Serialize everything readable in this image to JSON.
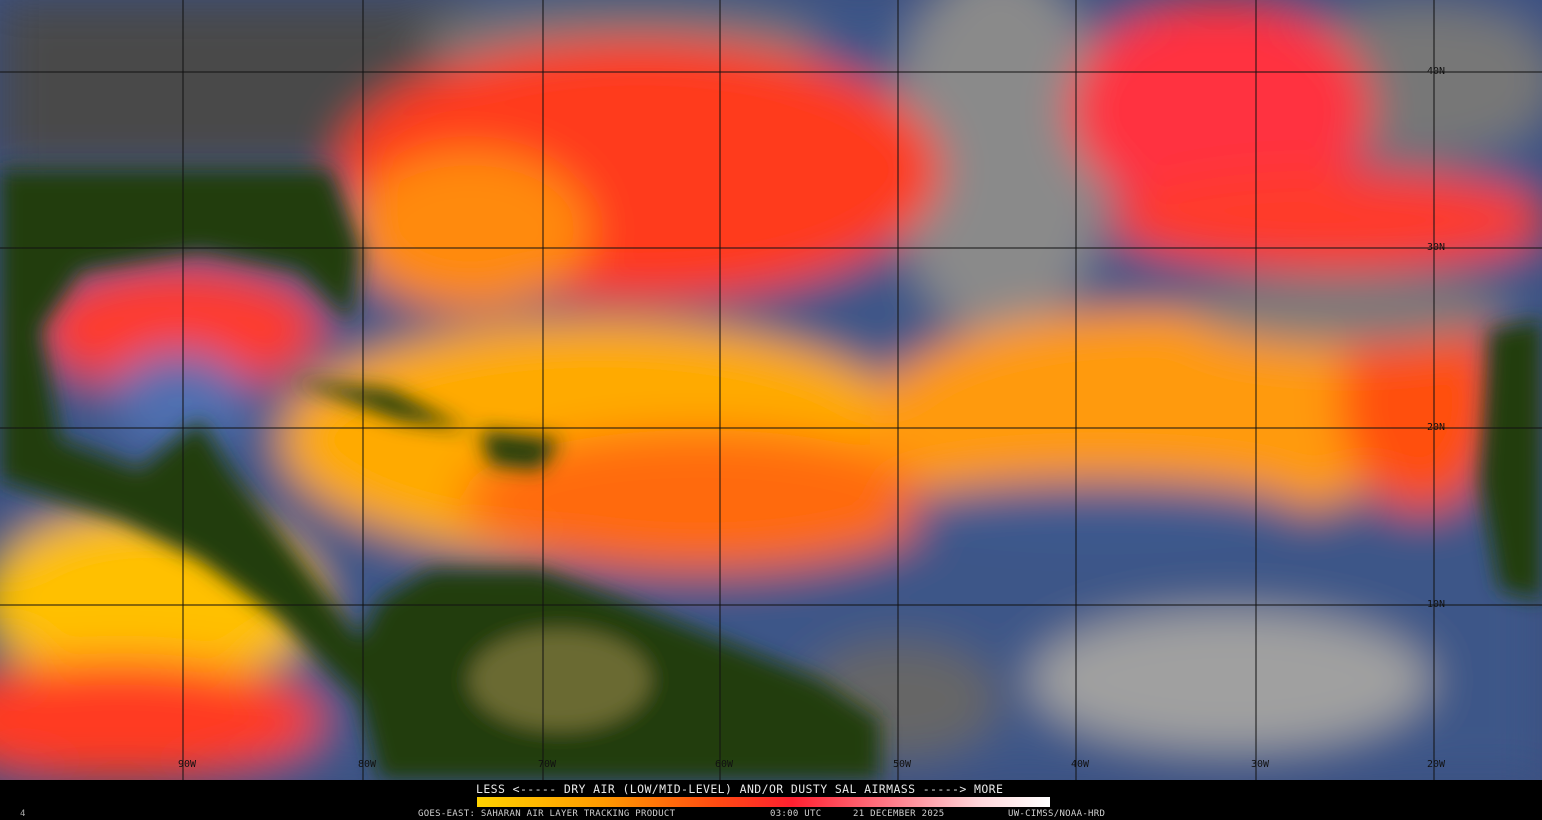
{
  "product": {
    "legend_title": "LESS <----- DRY AIR (LOW/MID-LEVEL) AND/OR DUSTY SAL AIRMASS -----> MORE",
    "satellite_product": "GOES-EAST: SAHARAN AIR LAYER TRACKING PRODUCT",
    "time": "03:00 UTC",
    "date": "21 DECEMBER 2025",
    "credit": "UW-CIMSS/NOAA-HRD",
    "corner_mark": "4"
  },
  "grid": {
    "longitude_labels": [
      "90W",
      "80W",
      "70W",
      "60W",
      "50W",
      "40W",
      "30W",
      "20W"
    ],
    "latitude_labels": [
      "40N",
      "30N",
      "20N",
      "10N"
    ]
  },
  "colors": {
    "less": "#ffd200",
    "mid": "#ff2030",
    "more": "#ffffff",
    "land": "#1f3a0c",
    "moist_ocean": "#3b5a9a",
    "clouds": "#9a9a9a"
  }
}
